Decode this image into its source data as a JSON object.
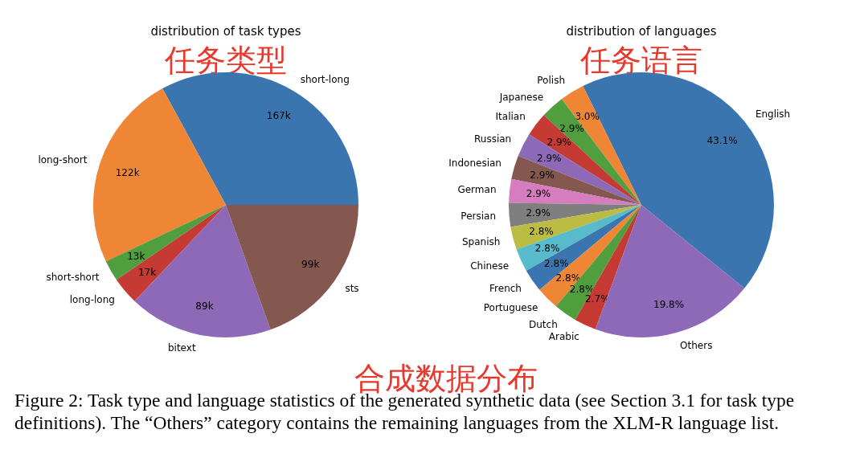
{
  "chart_data": [
    {
      "type": "pie",
      "title": "distribution of task types",
      "subtitle": "任务类型",
      "categories": [
        "short-long",
        "long-short",
        "short-short",
        "long-long",
        "bitext",
        "sts"
      ],
      "values": [
        167,
        122,
        13,
        17,
        89,
        99
      ],
      "value_labels": [
        "167k",
        "122k",
        "13k",
        "17k",
        "89k",
        "99k"
      ],
      "colors": [
        "#3b75af",
        "#ef8636",
        "#519e3e",
        "#c53a32",
        "#8d69b8",
        "#84584e"
      ]
    },
    {
      "type": "pie",
      "title": "distribution of languages",
      "subtitle": "任务语言",
      "categories": [
        "English",
        "Polish",
        "Japanese",
        "Italian",
        "Russian",
        "Indonesian",
        "German",
        "Persian",
        "Spanish",
        "Chinese",
        "French",
        "Portuguese",
        "Dutch",
        "Arabic",
        "Others"
      ],
      "values": [
        43.1,
        3.0,
        2.9,
        2.9,
        2.9,
        2.9,
        2.9,
        2.9,
        2.8,
        2.8,
        2.8,
        2.8,
        2.8,
        2.7,
        19.8
      ],
      "value_labels": [
        "43.1%",
        "3.0%",
        "2.9%",
        "2.9%",
        "2.9%",
        "2.9%",
        "2.9%",
        "2.9%",
        "2.8%",
        "2.8%",
        "2.8%",
        "2.8%",
        "2.8%",
        "2.7%",
        "19.8%"
      ],
      "colors": [
        "#3b75af",
        "#ef8636",
        "#519e3e",
        "#c53a32",
        "#8d69b8",
        "#84584e",
        "#d57dbf",
        "#7f7f7f",
        "#bcbc45",
        "#58bbcc",
        "#3b75af",
        "#ef8636",
        "#519e3e",
        "#c53a32",
        "#8d69b8"
      ],
      "annotations": [
        "合成数据分布",
        "Figure 2: Task type and language statistics of the generated synthetic data (see Section 3.1 for task type definitions). The “Others” category contains the remaining languages from the XLM-R language list."
      ]
    }
  ]
}
